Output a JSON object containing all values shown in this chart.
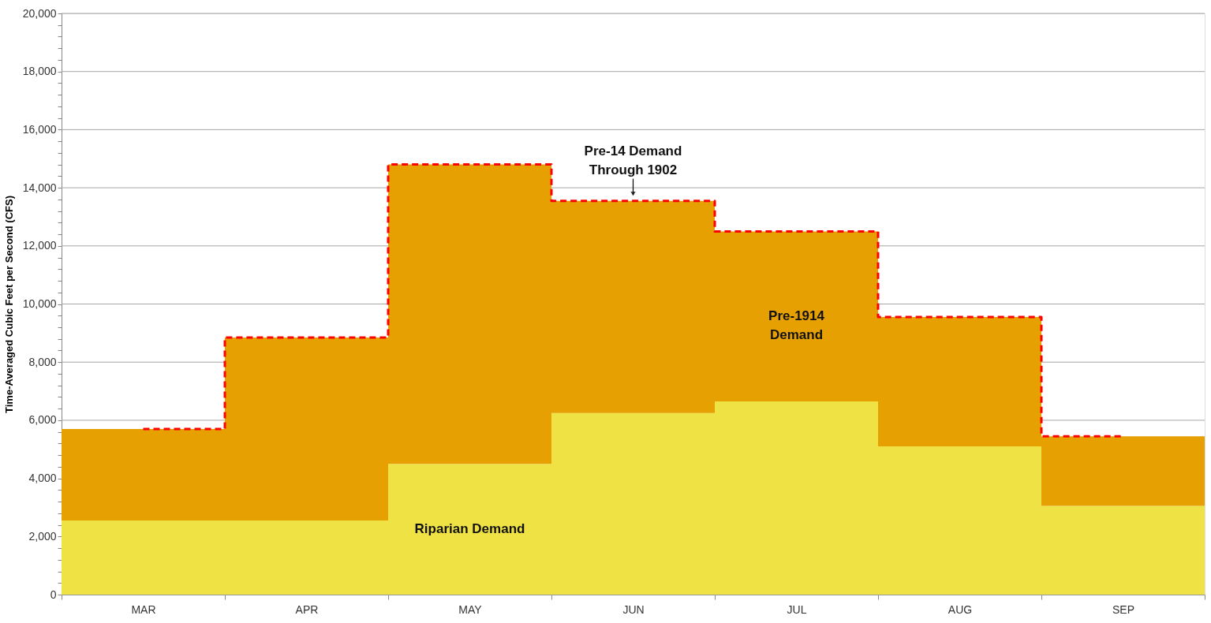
{
  "chart_data": {
    "type": "bar",
    "stacked": true,
    "legend": false,
    "grid": "y",
    "ylabel": "Time-Averaged Cubic Feet per Second (CFS)",
    "categories": [
      "MAR",
      "APR",
      "MAY",
      "JUN",
      "JUL",
      "AUG",
      "SEP"
    ],
    "ylim": [
      0,
      20000
    ],
    "yticks": [
      0,
      {
        "value": 400,
        "label": null
      },
      {
        "value": 800,
        "label": null
      },
      {
        "value": 1200,
        "label": null
      },
      {
        "value": 1600,
        "label": null
      },
      {
        "value": 2000,
        "label": "2,000"
      },
      {
        "value": 2400,
        "label": null
      },
      {
        "value": 2800,
        "label": null
      },
      {
        "value": 3200,
        "label": null
      },
      {
        "value": 3600,
        "label": null
      },
      {
        "value": 4000,
        "label": "4,000"
      },
      {
        "value": 4400,
        "label": null
      },
      {
        "value": 4800,
        "label": null
      },
      {
        "value": 5200,
        "label": null
      },
      {
        "value": 5600,
        "label": null
      },
      {
        "value": 6000,
        "label": "6,000"
      },
      {
        "value": 6400,
        "label": null
      },
      {
        "value": 6800,
        "label": null
      },
      {
        "value": 7200,
        "label": null
      },
      {
        "value": 7600,
        "label": null
      },
      {
        "value": 8000,
        "label": "8,000"
      },
      {
        "value": 8400,
        "label": null
      },
      {
        "value": 8800,
        "label": null
      },
      {
        "value": 9200,
        "label": null
      },
      {
        "value": 9600,
        "label": null
      },
      {
        "value": 10000,
        "label": "10,000"
      },
      {
        "value": 10400,
        "label": null
      },
      {
        "value": 10800,
        "label": null
      },
      {
        "value": 11200,
        "label": null
      },
      {
        "value": 11600,
        "label": null
      },
      {
        "value": 12000,
        "label": "12,000"
      },
      {
        "value": 12400,
        "label": null
      },
      {
        "value": 12800,
        "label": null
      },
      {
        "value": 13200,
        "label": null
      },
      {
        "value": 13600,
        "label": null
      },
      {
        "value": 14000,
        "label": "14,000"
      },
      {
        "value": 14400,
        "label": null
      },
      {
        "value": 14800,
        "label": null
      },
      {
        "value": 15200,
        "label": null
      },
      {
        "value": 15600,
        "label": null
      },
      {
        "value": 16000,
        "label": "16,000"
      },
      {
        "value": 16400,
        "label": null
      },
      {
        "value": 16800,
        "label": null
      },
      {
        "value": 17200,
        "label": null
      },
      {
        "value": 17600,
        "label": null
      },
      {
        "value": 18000,
        "label": "18,000"
      },
      {
        "value": 18400,
        "label": null
      },
      {
        "value": 18800,
        "label": null
      },
      {
        "value": 19200,
        "label": null
      },
      {
        "value": 19600,
        "label": null
      },
      {
        "value": 20000,
        "label": "20,000"
      }
    ],
    "series": [
      {
        "name": "Riparian Demand",
        "color": "#efe245",
        "values": [
          2550,
          2550,
          4500,
          6250,
          6650,
          5100,
          3050
        ]
      },
      {
        "name": "Pre-1914 Demand",
        "color": "#e6a002",
        "values": [
          3150,
          6300,
          10300,
          7300,
          5850,
          4450,
          2400
        ]
      },
      {
        "name": "Pre-14 Demand Through 1902",
        "type": "step",
        "line_style": "dashed",
        "color": "#ff0000",
        "values": [
          5700,
          8850,
          14800,
          13550,
          12500,
          9550,
          5450
        ]
      }
    ]
  }
}
